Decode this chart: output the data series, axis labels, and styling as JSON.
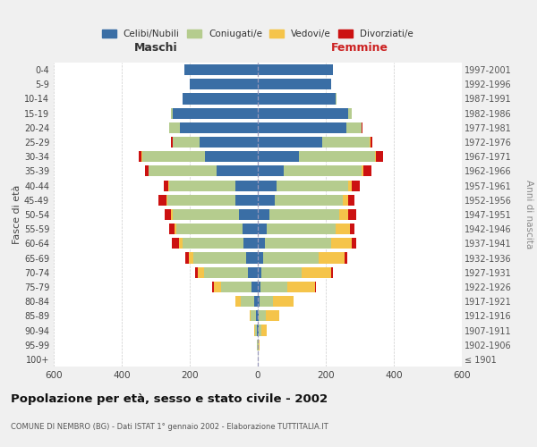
{
  "age_groups": [
    "100+",
    "95-99",
    "90-94",
    "85-89",
    "80-84",
    "75-79",
    "70-74",
    "65-69",
    "60-64",
    "55-59",
    "50-54",
    "45-49",
    "40-44",
    "35-39",
    "30-34",
    "25-29",
    "20-24",
    "15-19",
    "10-14",
    "5-9",
    "0-4"
  ],
  "birth_years": [
    "≤ 1901",
    "1902-1906",
    "1907-1911",
    "1912-1916",
    "1917-1921",
    "1922-1926",
    "1927-1931",
    "1932-1936",
    "1937-1941",
    "1942-1946",
    "1947-1951",
    "1952-1956",
    "1957-1961",
    "1962-1966",
    "1967-1971",
    "1972-1976",
    "1977-1981",
    "1982-1986",
    "1987-1991",
    "1992-1996",
    "1997-2001"
  ],
  "maschi_celibi": [
    0,
    1,
    3,
    5,
    10,
    18,
    28,
    35,
    42,
    45,
    55,
    65,
    65,
    120,
    155,
    170,
    230,
    250,
    220,
    200,
    215
  ],
  "maschi_coniugati": [
    0,
    1,
    5,
    15,
    40,
    90,
    130,
    155,
    180,
    195,
    195,
    200,
    195,
    200,
    185,
    80,
    30,
    5,
    2,
    1,
    0
  ],
  "maschi_vedovi": [
    0,
    0,
    2,
    5,
    15,
    20,
    18,
    12,
    10,
    5,
    5,
    3,
    2,
    2,
    1,
    1,
    0,
    0,
    0,
    0,
    0
  ],
  "maschi_divorziati": [
    0,
    0,
    0,
    0,
    1,
    5,
    8,
    12,
    20,
    15,
    20,
    25,
    15,
    10,
    8,
    3,
    1,
    0,
    0,
    0,
    0
  ],
  "femmine_celibi": [
    0,
    1,
    2,
    3,
    5,
    8,
    10,
    15,
    20,
    25,
    35,
    50,
    55,
    75,
    120,
    190,
    260,
    265,
    230,
    215,
    220
  ],
  "femmine_coniugati": [
    0,
    2,
    8,
    20,
    40,
    80,
    120,
    165,
    195,
    205,
    205,
    200,
    210,
    230,
    225,
    140,
    45,
    10,
    2,
    1,
    0
  ],
  "femmine_vedovi": [
    1,
    2,
    15,
    40,
    60,
    80,
    85,
    75,
    60,
    40,
    25,
    15,
    10,
    5,
    3,
    2,
    1,
    0,
    0,
    0,
    0
  ],
  "femmine_divorziati": [
    0,
    0,
    0,
    1,
    1,
    3,
    5,
    8,
    15,
    15,
    25,
    20,
    25,
    25,
    20,
    5,
    2,
    0,
    0,
    0,
    0
  ],
  "colors": {
    "celibi": "#3a6ea5",
    "coniugati": "#b5cc8e",
    "vedovi": "#f5c44a",
    "divorziati": "#cc1111"
  },
  "xlim": 600,
  "title": "Popolazione per età, sesso e stato civile - 2002",
  "subtitle": "COMUNE DI NEMBRO (BG) - Dati ISTAT 1° gennaio 2002 - Elaborazione TUTTITALIA.IT",
  "ylabel": "Fasce di età",
  "ylabel_right": "Anni di nascita",
  "xlabel_left": "Maschi",
  "xlabel_right": "Femmine",
  "bg_color": "#f0f0f0",
  "plot_bg": "#ffffff"
}
